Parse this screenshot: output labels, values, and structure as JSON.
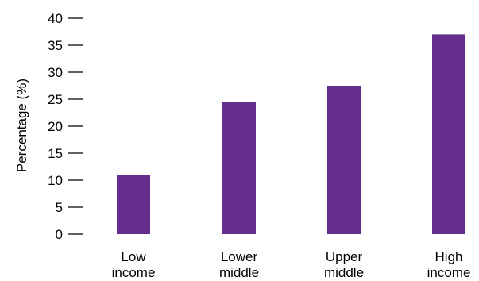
{
  "chart_data": {
    "type": "bar",
    "categories": [
      [
        "Low",
        "income"
      ],
      [
        "Lower",
        "middle"
      ],
      [
        "Upper",
        "middle"
      ],
      [
        "High",
        "income"
      ]
    ],
    "values": [
      11,
      24.5,
      27.5,
      37
    ],
    "ylabel": "Percentage (%)",
    "xlabel": "",
    "ylim": [
      0,
      40
    ],
    "yticks": [
      0,
      5,
      10,
      15,
      20,
      25,
      30,
      35,
      40
    ],
    "bar_color": "#652d8e",
    "axis_color": "#000000",
    "grid": false,
    "legend": "none"
  }
}
